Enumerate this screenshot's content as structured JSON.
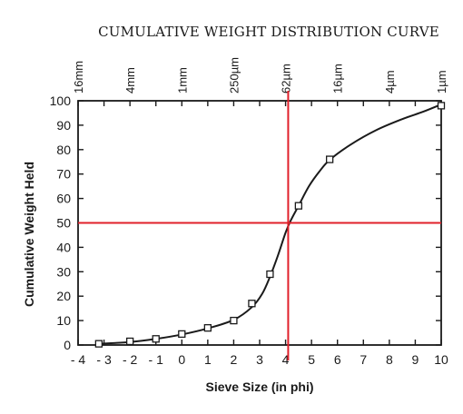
{
  "chart_data": {
    "type": "line",
    "title": "CUMULATIVE WEIGHT DISTRIBUTION CURVE",
    "xlabel": "Sieve Size (in phi)",
    "ylabel": "Cumulative Weight Held",
    "xlim": [
      -4,
      10
    ],
    "ylim": [
      0,
      100
    ],
    "x_ticks": [
      -4,
      -3,
      -2,
      -1,
      0,
      1,
      2,
      3,
      4,
      5,
      6,
      7,
      8,
      9,
      10
    ],
    "x_tick_labels": [
      "- 4",
      "- 3",
      "- 2",
      "- 1",
      "0",
      "1",
      "2",
      "3",
      "4",
      "5",
      "6",
      "7",
      "8",
      "9",
      "10"
    ],
    "y_ticks": [
      0,
      10,
      20,
      30,
      40,
      50,
      60,
      70,
      80,
      90,
      100
    ],
    "y_tick_labels": [
      "0",
      "10",
      "20",
      "30",
      "40",
      "50",
      "60",
      "70",
      "80",
      "90",
      "100"
    ],
    "top_axis_labels": [
      {
        "text": "16mm",
        "x": -4
      },
      {
        "text": "4mm",
        "x": -2
      },
      {
        "text": "1mm",
        "x": 0
      },
      {
        "text": "250µm",
        "x": 2
      },
      {
        "text": "62µm",
        "x": 4
      },
      {
        "text": "16µm",
        "x": 6
      },
      {
        "text": "4µm",
        "x": 8
      },
      {
        "text": "1µm",
        "x": 10
      }
    ],
    "series": [
      {
        "points": [
          {
            "x": -3.2,
            "y": 0.5
          },
          {
            "x": -2.0,
            "y": 1.5
          },
          {
            "x": -1.0,
            "y": 2.5
          },
          {
            "x": 0.0,
            "y": 4.5
          },
          {
            "x": 1.0,
            "y": 7
          },
          {
            "x": 2.0,
            "y": 10
          },
          {
            "x": 2.7,
            "y": 17
          },
          {
            "x": 3.4,
            "y": 29
          },
          {
            "x": 4.5,
            "y": 57
          },
          {
            "x": 5.7,
            "y": 76
          },
          {
            "x": 10.0,
            "y": 98
          }
        ],
        "curve": [
          [
            -3.2,
            0.5
          ],
          [
            -2.0,
            1.2
          ],
          [
            -1.0,
            2.5
          ],
          [
            0.0,
            4.3
          ],
          [
            1.0,
            6.8
          ],
          [
            2.0,
            10.3
          ],
          [
            2.7,
            15.5
          ],
          [
            3.1,
            21
          ],
          [
            3.4,
            28
          ],
          [
            3.7,
            36.5
          ],
          [
            4.0,
            46
          ],
          [
            4.2,
            51
          ],
          [
            4.5,
            57
          ],
          [
            4.9,
            65
          ],
          [
            5.3,
            71
          ],
          [
            5.7,
            75.8
          ],
          [
            6.5,
            82
          ],
          [
            7.5,
            88
          ],
          [
            8.5,
            92.5
          ],
          [
            9.3,
            95.5
          ],
          [
            10.0,
            98.5
          ]
        ],
        "color": "#1a1a1a"
      }
    ],
    "reference_lines": [
      {
        "orientation": "vertical",
        "value": 4.1,
        "color": "#e0202a"
      },
      {
        "orientation": "horizontal",
        "value": 50,
        "color": "#e0202a"
      }
    ],
    "grid": false
  }
}
